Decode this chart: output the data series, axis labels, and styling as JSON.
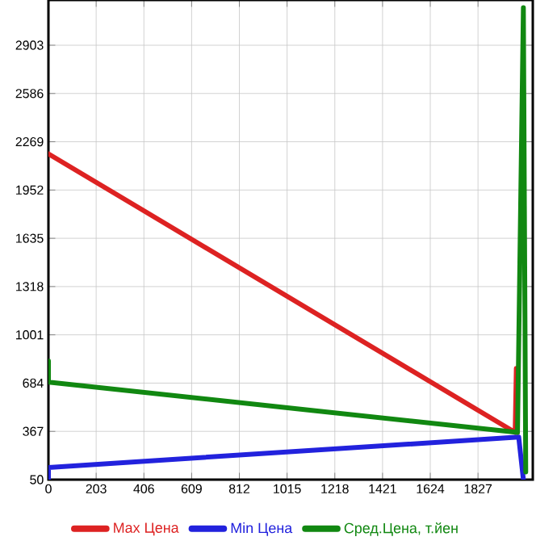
{
  "chart_data": {
    "type": "line",
    "xlim": [
      0,
      2060
    ],
    "ylim": [
      50,
      3200
    ],
    "xticks": [
      0,
      203,
      406,
      609,
      812,
      1015,
      1218,
      1421,
      1624,
      1827
    ],
    "yticks": [
      50,
      367,
      684,
      1001,
      1318,
      1635,
      1952,
      2269,
      2586,
      2903
    ],
    "grid": true,
    "legend": "bottom",
    "marker": "none",
    "line_style": "solid",
    "series": [
      {
        "name": "Max Цена",
        "color": "#dd2222",
        "x": [
          0,
          1985,
          1990,
          1995
        ],
        "values": [
          2190,
          360,
          780,
          360
        ]
      },
      {
        "name": "Min Цена",
        "color": "#2222dd",
        "x": [
          0,
          0,
          2000,
          2020
        ],
        "values": [
          50,
          130,
          330,
          50
        ]
      },
      {
        "name": "Сред.Цена, т.йен",
        "color": "#118811",
        "x": [
          0,
          0,
          1995,
          2020,
          2030
        ],
        "values": [
          830,
          690,
          360,
          3150,
          100
        ]
      }
    ]
  }
}
